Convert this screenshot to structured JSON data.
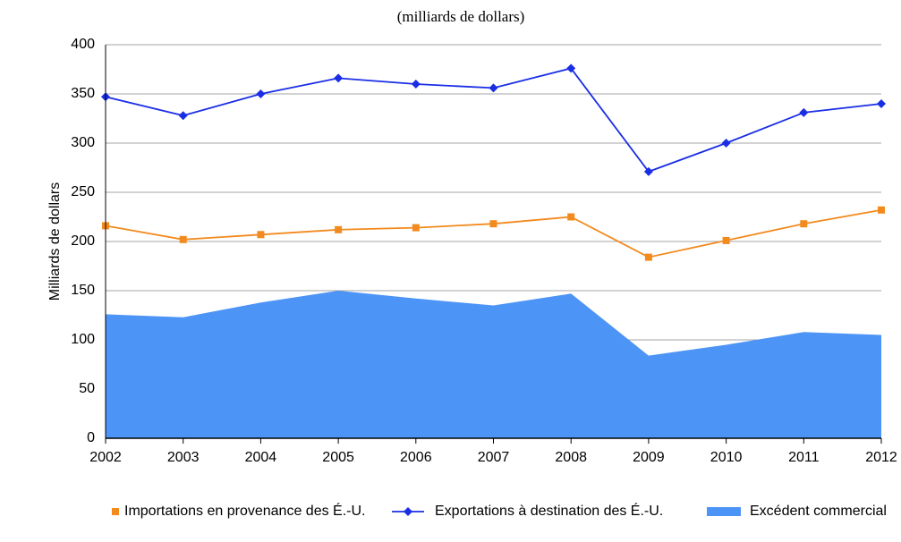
{
  "chart_data": {
    "type": "line",
    "title": "(milliards de dollars)",
    "y_label": "Milliards de dollars",
    "categories": [
      "2002",
      "2003",
      "2004",
      "2005",
      "2006",
      "2007",
      "2008",
      "2009",
      "2010",
      "2011",
      "2012"
    ],
    "series": [
      {
        "name": "Importations en provenance des É.-U.",
        "type": "line",
        "marker": "square",
        "color": "#f28a1e",
        "values": [
          216,
          202,
          207,
          212,
          214,
          218,
          225,
          184,
          201,
          218,
          232
        ]
      },
      {
        "name": "Exportations à destination des É.-U.",
        "type": "line",
        "marker": "diamond",
        "color": "#1a2ee6",
        "values": [
          347,
          328,
          350,
          366,
          360,
          356,
          376,
          271,
          300,
          331,
          340
        ]
      },
      {
        "name": "Excédent commercial",
        "type": "area",
        "color": "#4d94f7",
        "values": [
          126,
          123,
          138,
          150,
          142,
          135,
          147,
          84,
          95,
          108,
          105
        ]
      }
    ],
    "ylim": [
      0,
      400
    ],
    "yticks": [
      0,
      50,
      100,
      150,
      200,
      250,
      300,
      350,
      400
    ],
    "grid": true,
    "legend": "bottom"
  }
}
